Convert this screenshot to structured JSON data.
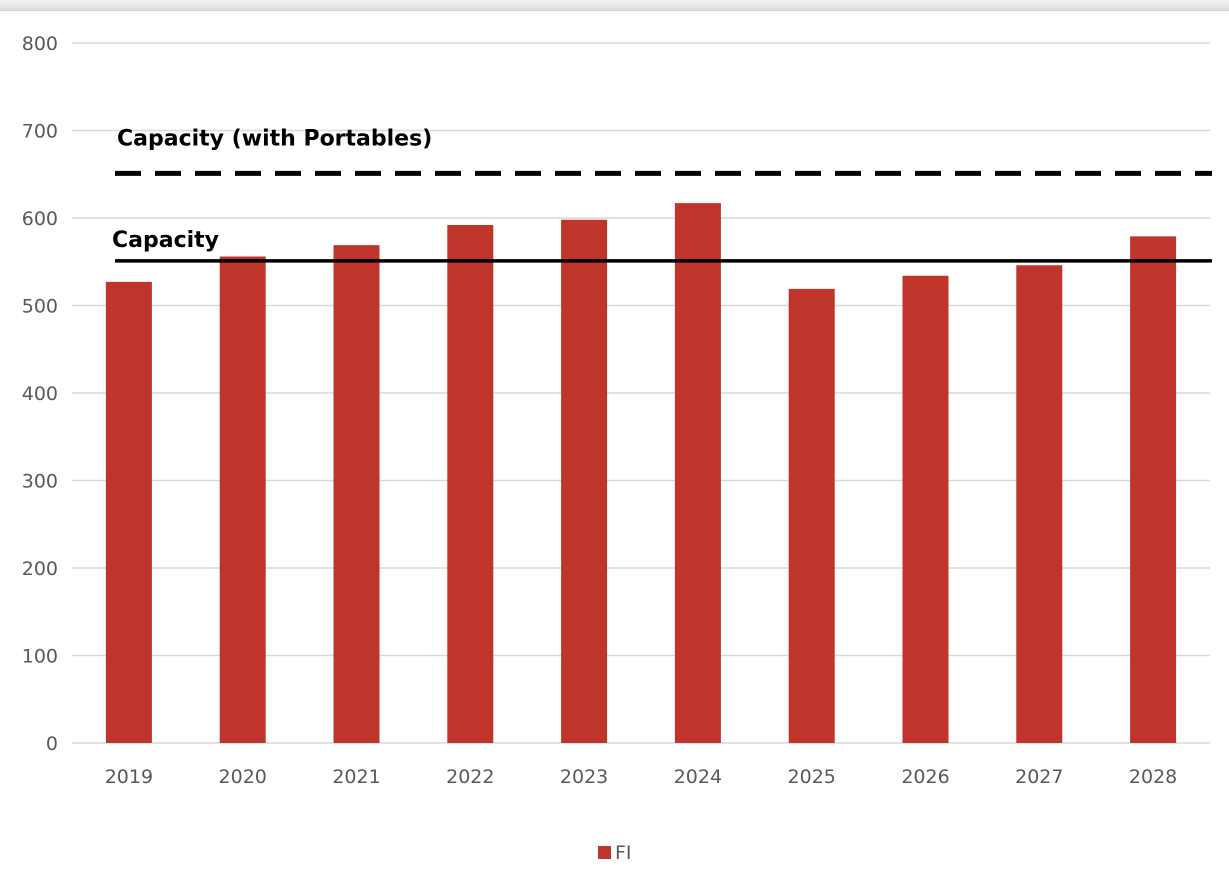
{
  "chart_data": {
    "type": "bar",
    "categories": [
      "2019",
      "2020",
      "2021",
      "2022",
      "2023",
      "2024",
      "2025",
      "2026",
      "2027",
      "2028"
    ],
    "series": [
      {
        "name": "FI",
        "color": "#c0352b",
        "values": [
          527,
          556,
          569,
          592,
          598,
          617,
          519,
          534,
          546,
          579
        ]
      }
    ],
    "ylim": [
      0,
      800
    ],
    "yticks": [
      0,
      100,
      200,
      300,
      400,
      500,
      600,
      700,
      800
    ],
    "grid": true,
    "legend_position": "bottom",
    "reference_lines": [
      {
        "label": "Capacity (with Portables)",
        "value": 651,
        "style": "dashed",
        "color": "#000000"
      },
      {
        "label": "Capacity",
        "value": 551,
        "style": "solid",
        "color": "#000000"
      }
    ],
    "title": "",
    "xlabel": "",
    "ylabel": ""
  }
}
